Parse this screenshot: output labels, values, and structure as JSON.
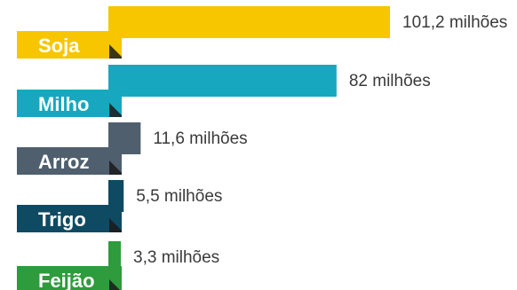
{
  "chart_data": {
    "type": "bar",
    "orientation": "horizontal",
    "categories": [
      "Soja",
      "Milho",
      "Arroz",
      "Trigo",
      "Feijão"
    ],
    "values": [
      101.2,
      82,
      11.6,
      5.5,
      3.3
    ],
    "value_labels": [
      "101,2 milhões",
      "82 milhões",
      "11,6 milhões",
      "5,5 milhões",
      "3,3 milhões"
    ],
    "colors": [
      "#f7c600",
      "#17a8bf",
      "#4f5f6e",
      "#0f4a63",
      "#2e9b3c"
    ],
    "title": "",
    "xlabel": "",
    "ylabel": "",
    "xlim": [
      0,
      101.2
    ],
    "grid": false,
    "legend": "none"
  }
}
